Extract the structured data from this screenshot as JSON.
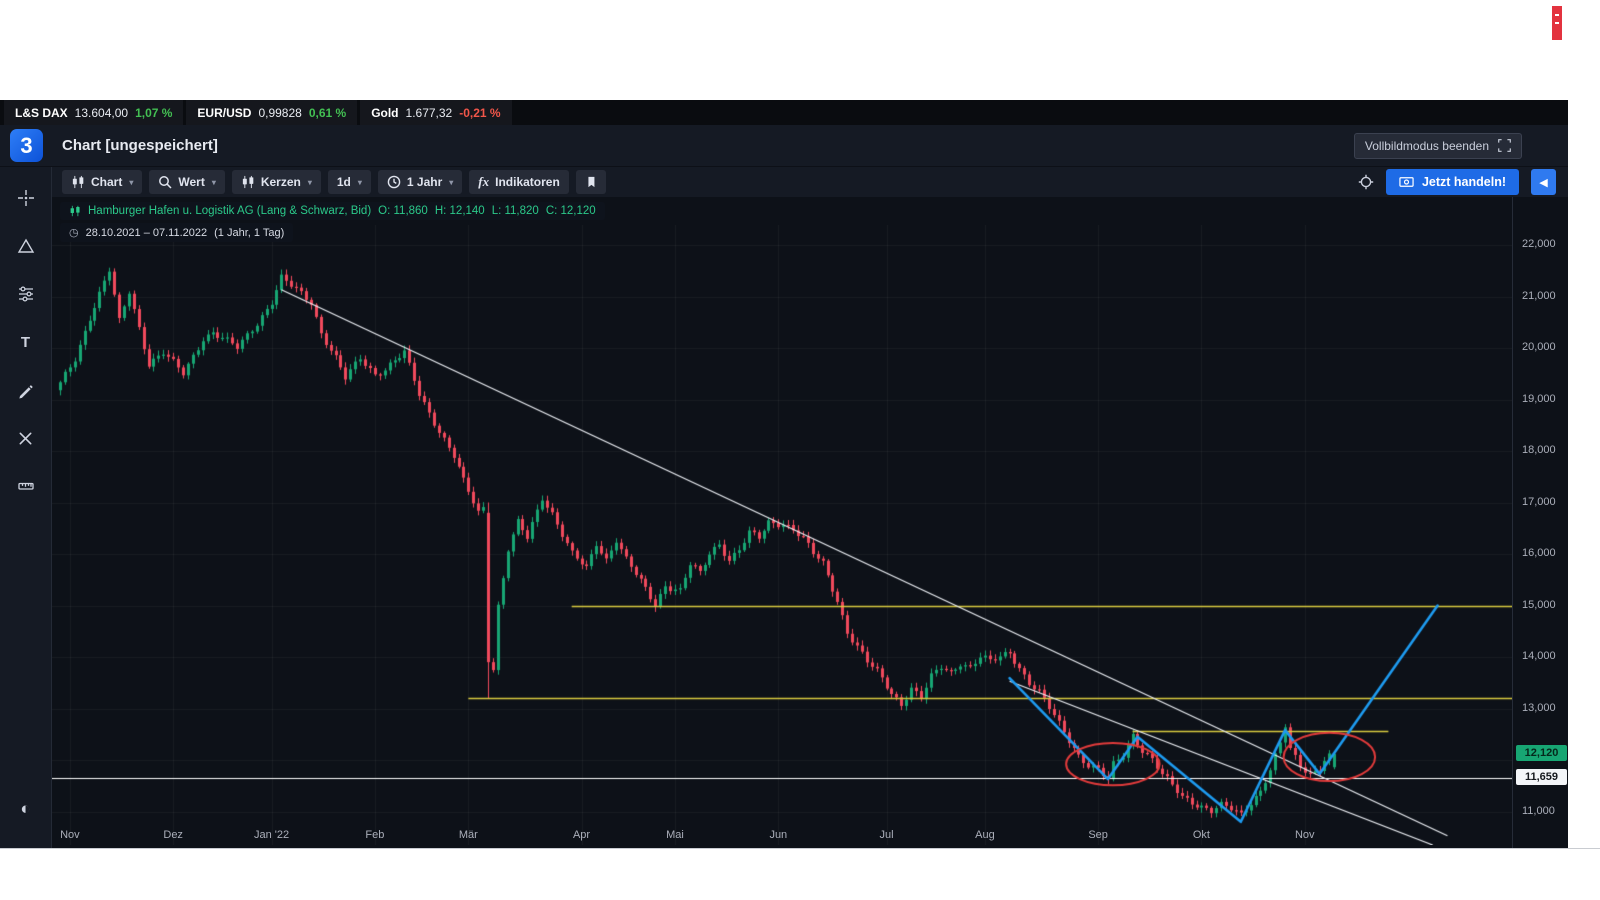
{
  "ticker_bar": {
    "items": [
      {
        "label": "L&S DAX",
        "value": "13.604,00",
        "change": "1,07 %",
        "direction": "up"
      },
      {
        "label": "EUR/USD",
        "value": "0,99828",
        "change": "0,61 %",
        "direction": "up"
      },
      {
        "label": "Gold",
        "value": "1.677,32",
        "change": "-0,21 %",
        "direction": "down"
      }
    ]
  },
  "header": {
    "logo": "3",
    "title": "Chart [ungespeichert]",
    "fullscreen_button_label": "Vollbildmodus beenden"
  },
  "toolbar": {
    "buttons": {
      "chart": "Chart",
      "search": "Wert",
      "candles": "Kerzen",
      "interval": "1d",
      "range": "1 Jahr",
      "indicators_fx": "fx",
      "indicators": "Indikatoren"
    },
    "trade_button_label": "Jetzt handeln!"
  },
  "legend": {
    "instrument": "Hamburger Hafen u. Logistik AG (Lang & Schwarz, Bid)",
    "ohlc": {
      "o": "O: 11,860",
      "h": "H: 12,140",
      "l": "L: 11,820",
      "c": "C: 12,120"
    },
    "date_range": "28.10.2021 – 07.11.2022",
    "range_detail": "(1 Jahr, 1 Tag)"
  },
  "chart_data": {
    "type": "candlestick",
    "title": "Hamburger Hafen u. Logistik AG (Lang & Schwarz, Bid)",
    "interval": "1 Tag",
    "range": "1 Jahr",
    "last_ohlc": {
      "open": 11.86,
      "high": 12.14,
      "low": 11.82,
      "close": 12.12
    },
    "days": 260,
    "y_ticks": [
      {
        "v": 22.0,
        "label": "22,000"
      },
      {
        "v": 21.0,
        "label": "21,000"
      },
      {
        "v": 20.0,
        "label": "20,000"
      },
      {
        "v": 19.0,
        "label": "19,000"
      },
      {
        "v": 18.0,
        "label": "18,000"
      },
      {
        "v": 17.0,
        "label": "17,000"
      },
      {
        "v": 16.0,
        "label": "16,000"
      },
      {
        "v": 15.0,
        "label": "15,000"
      },
      {
        "v": 14.0,
        "label": "14,000"
      },
      {
        "v": 13.0,
        "label": "13,000"
      },
      {
        "v": 11.0,
        "label": "11,000"
      }
    ],
    "x_ticks": [
      {
        "day": 2,
        "label": "Nov"
      },
      {
        "day": 23,
        "label": "Dez"
      },
      {
        "day": 43,
        "label": "Jan '22"
      },
      {
        "day": 64,
        "label": "Feb"
      },
      {
        "day": 83,
        "label": "Mär"
      },
      {
        "day": 106,
        "label": "Apr"
      },
      {
        "day": 125,
        "label": "Mai"
      },
      {
        "day": 146,
        "label": "Jun"
      },
      {
        "day": 168,
        "label": "Jul"
      },
      {
        "day": 188,
        "label": "Aug"
      },
      {
        "day": 211,
        "label": "Sep"
      },
      {
        "day": 232,
        "label": "Okt"
      },
      {
        "day": 253,
        "label": "Nov"
      }
    ],
    "close_anchors": [
      [
        0,
        19.3
      ],
      [
        3,
        19.8
      ],
      [
        6,
        20.6
      ],
      [
        10,
        21.5
      ],
      [
        12,
        20.5
      ],
      [
        14,
        21.1
      ],
      [
        18,
        19.7
      ],
      [
        21,
        19.9
      ],
      [
        23,
        19.7
      ],
      [
        25,
        19.5
      ],
      [
        29,
        20.2
      ],
      [
        31,
        20.3
      ],
      [
        36,
        20.0
      ],
      [
        40,
        20.5
      ],
      [
        43,
        20.9
      ],
      [
        45,
        21.35
      ],
      [
        51,
        20.9
      ],
      [
        53,
        20.3
      ],
      [
        56,
        19.8
      ],
      [
        58,
        19.4
      ],
      [
        61,
        19.8
      ],
      [
        64,
        19.5
      ],
      [
        66,
        19.6
      ],
      [
        70,
        19.9
      ],
      [
        73,
        19.1
      ],
      [
        77,
        18.4
      ],
      [
        80,
        17.9
      ],
      [
        82,
        17.4
      ],
      [
        85,
        16.8
      ],
      [
        86,
        16.9
      ],
      [
        87,
        13.9
      ],
      [
        88,
        13.8
      ],
      [
        89,
        15.0
      ],
      [
        91,
        16.1
      ],
      [
        93,
        16.6
      ],
      [
        95,
        16.3
      ],
      [
        98,
        17.1
      ],
      [
        100,
        16.8
      ],
      [
        102,
        16.4
      ],
      [
        104,
        16.0
      ],
      [
        107,
        15.7
      ],
      [
        109,
        16.2
      ],
      [
        111,
        15.9
      ],
      [
        113,
        16.3
      ],
      [
        115,
        15.9
      ],
      [
        117,
        15.6
      ],
      [
        119,
        15.3
      ],
      [
        121,
        15.0
      ],
      [
        123,
        15.4
      ],
      [
        126,
        15.3
      ],
      [
        128,
        15.8
      ],
      [
        130,
        15.6
      ],
      [
        132,
        16.0
      ],
      [
        134,
        16.2
      ],
      [
        136,
        15.9
      ],
      [
        138,
        16.1
      ],
      [
        140,
        16.4
      ],
      [
        142,
        16.3
      ],
      [
        144,
        16.6
      ],
      [
        147,
        16.6
      ],
      [
        149,
        16.5
      ],
      [
        151,
        16.3
      ],
      [
        153,
        16.0
      ],
      [
        155,
        15.8
      ],
      [
        158,
        15.1
      ],
      [
        160,
        14.5
      ],
      [
        162,
        14.2
      ],
      [
        164,
        13.9
      ],
      [
        166,
        13.7
      ],
      [
        169,
        13.3
      ],
      [
        171,
        13.1
      ],
      [
        173,
        13.4
      ],
      [
        175,
        13.2
      ],
      [
        177,
        13.6
      ],
      [
        179,
        13.8
      ],
      [
        181,
        13.7
      ],
      [
        183,
        13.9
      ],
      [
        185,
        13.8
      ],
      [
        187,
        14.0
      ],
      [
        189,
        13.9
      ],
      [
        191,
        14.0
      ],
      [
        193,
        14.1
      ],
      [
        195,
        13.8
      ],
      [
        197,
        13.5
      ],
      [
        199,
        13.3
      ],
      [
        201,
        13.0
      ],
      [
        203,
        12.7
      ],
      [
        205,
        12.4
      ],
      [
        207,
        12.1
      ],
      [
        209,
        11.9
      ],
      [
        211,
        11.8
      ],
      [
        213,
        11.6
      ],
      [
        214,
        11.9
      ],
      [
        216,
        12.1
      ],
      [
        218,
        12.5
      ],
      [
        220,
        12.2
      ],
      [
        222,
        12.0
      ],
      [
        224,
        11.7
      ],
      [
        226,
        11.5
      ],
      [
        228,
        11.3
      ],
      [
        230,
        11.2
      ],
      [
        232,
        11.1
      ],
      [
        234,
        11.0
      ],
      [
        236,
        11.1
      ],
      [
        238,
        11.05
      ],
      [
        240,
        10.95
      ],
      [
        242,
        11.2
      ],
      [
        244,
        11.4
      ],
      [
        246,
        11.8
      ],
      [
        248,
        12.3
      ],
      [
        249,
        12.65
      ],
      [
        250,
        12.2
      ],
      [
        252,
        11.9
      ],
      [
        254,
        11.75
      ],
      [
        256,
        11.85
      ],
      [
        257,
        12.0
      ],
      [
        259,
        12.12
      ]
    ],
    "special_candles": {
      "87": [
        16.8,
        17.0,
        13.2,
        13.9
      ],
      "259": [
        11.86,
        12.14,
        11.82,
        12.12
      ]
    },
    "last_price": {
      "value": 12.12,
      "label": "12,120"
    },
    "level_line": {
      "value": 11.659,
      "label": "11,659"
    },
    "annotations": {
      "trendlines": [
        {
          "from_day": 45,
          "from_price": 21.13,
          "to_day": 282,
          "to_price": 10.53
        },
        {
          "from_day": 193,
          "from_price": 13.53,
          "to_day": 279,
          "to_price": 10.35
        }
      ],
      "yellow_lines": [
        {
          "price": 15.0,
          "from_day": 104,
          "to_day": 296
        },
        {
          "price": 13.21,
          "from_day": 83,
          "to_day": 296
        },
        {
          "price": 12.56,
          "from_day": 218,
          "to_day": 270
        }
      ],
      "projection": [
        [
          193,
          13.59
        ],
        [
          213,
          11.63
        ],
        [
          219,
          12.45
        ],
        [
          240,
          10.8
        ],
        [
          249,
          12.58
        ],
        [
          256,
          11.73
        ],
        [
          280,
          15.0
        ]
      ],
      "ellipses": [
        {
          "day": 214,
          "price": 11.92,
          "rx_days": 9.5,
          "ry_price": 0.41
        },
        {
          "day": 258,
          "price": 12.06,
          "rx_days": 9.3,
          "ry_price": 0.47
        }
      ]
    },
    "colors": {
      "up": "#17a673",
      "down": "#f04a5c",
      "grid": "rgba(178,181,190,0.07)",
      "trendline": "#eef1f6",
      "yellow": "#d9cc3f",
      "level": "#ffffff",
      "projection": "#1e9bf0",
      "ellipse": "#e23b3b",
      "axis_text": "#abafba"
    }
  }
}
